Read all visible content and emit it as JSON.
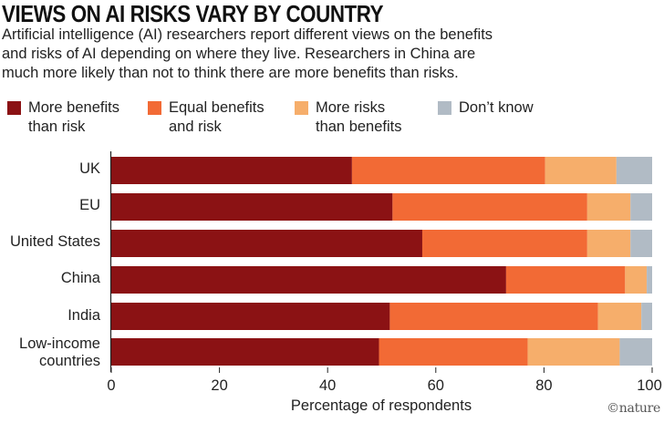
{
  "chart_data": {
    "type": "bar",
    "orientation": "horizontal",
    "stacked": true,
    "title": "VIEWS ON AI RISKS VARY BY COUNTRY",
    "subtitle_lines": [
      "Artificial intelligence (AI) researchers report different views on the benefits",
      "and risks of AI depending on where they live. Researchers in China are",
      "much more likely than not to think there are more benefits than risks."
    ],
    "categories": [
      [
        "UK"
      ],
      [
        "EU"
      ],
      [
        "United States"
      ],
      [
        "China"
      ],
      [
        "India"
      ],
      [
        "Low-income",
        "countries"
      ]
    ],
    "series": [
      {
        "name": "More benefits than risk",
        "label_lines": [
          "More benefits",
          "than risk"
        ],
        "color": "#8b1214",
        "values": [
          44.5,
          52,
          57.5,
          73,
          51.5,
          49.5
        ]
      },
      {
        "name": "Equal benefits and risk",
        "label_lines": [
          "Equal benefits",
          "and risk"
        ],
        "color": "#f26a35",
        "values": [
          35.7,
          36,
          30.5,
          22,
          38.5,
          27.5
        ]
      },
      {
        "name": "More risks than benefits",
        "label_lines": [
          "More risks",
          "than benefits"
        ],
        "color": "#f6ae6b",
        "values": [
          13.2,
          8,
          8,
          4,
          8,
          17
        ]
      },
      {
        "name": "Don't know",
        "label_lines": [
          "Don’t know"
        ],
        "color": "#b1bbc5",
        "values": [
          6.6,
          4,
          4,
          1,
          2,
          6
        ]
      }
    ],
    "xlabel": "Percentage of respondents",
    "ylabel": "",
    "xlim": [
      0,
      100
    ],
    "xticks": [
      "0",
      "20",
      "40",
      "60",
      "80",
      "100"
    ],
    "grid": false,
    "legend_position": "top"
  },
  "credit": "©nature"
}
